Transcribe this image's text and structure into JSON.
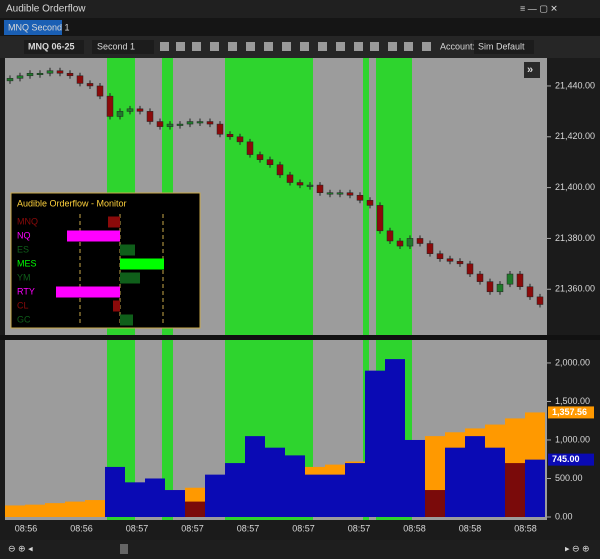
{
  "window": {
    "title": "Audible Orderflow",
    "tab": "MNQ Second 1"
  },
  "toolbar": {
    "instrument": "MNQ 06-25",
    "interval": "Second 1",
    "account_label": "Account:",
    "account": "Sim Default"
  },
  "monitor": {
    "title": "Audible Orderflow - Monitor",
    "xlim": [
      -70,
      70
    ],
    "rows": [
      {
        "symbol": "MNQ",
        "color": "#8b0a0a",
        "value": -12
      },
      {
        "symbol": "NQ",
        "color": "#ff00ff",
        "value": -53
      },
      {
        "symbol": "ES",
        "color": "#0f5f1a",
        "value": 15
      },
      {
        "symbol": "MES",
        "color": "#00ff00",
        "value": 44
      },
      {
        "symbol": "YM",
        "color": "#0f5f1a",
        "value": 20
      },
      {
        "symbol": "RTY",
        "color": "#ff00ff",
        "value": -64
      },
      {
        "symbol": "CL",
        "color": "#8b0a0a",
        "value": -7
      },
      {
        "symbol": "GC",
        "color": "#0f5f1a",
        "value": 13
      }
    ]
  },
  "time_labels": [
    "08:56",
    "08:56",
    "08:57",
    "08:57",
    "08:57",
    "08:57",
    "08:57",
    "08:58",
    "08:58",
    "08:58"
  ],
  "chart_data": [
    {
      "type": "candlestick",
      "up_color": "#1e7a2a",
      "down_color": "#8b0a0a",
      "ylim": [
        21342,
        21451
      ],
      "yticks": [
        {
          "value": 21440,
          "label": "21,440.00"
        },
        {
          "value": 21420,
          "label": "21,420.00"
        },
        {
          "value": 21400,
          "label": "21,400.00"
        },
        {
          "value": 21380,
          "label": "21,380.00"
        },
        {
          "value": 21360,
          "label": "21,360.00"
        }
      ],
      "candles": [
        [
          21442,
          21443
        ],
        [
          21443,
          21444
        ],
        [
          21444,
          21445
        ],
        [
          21445,
          21445
        ],
        [
          21445,
          21446
        ],
        [
          21446,
          21445
        ],
        [
          21445,
          21444
        ],
        [
          21444,
          21441
        ],
        [
          21441,
          21440
        ],
        [
          21440,
          21436
        ],
        [
          21436,
          21428
        ],
        [
          21428,
          21430
        ],
        [
          21430,
          21431
        ],
        [
          21431,
          21430
        ],
        [
          21430,
          21426
        ],
        [
          21426,
          21424
        ],
        [
          21424,
          21425
        ],
        [
          21425,
          21425
        ],
        [
          21425,
          21426
        ],
        [
          21426,
          21426
        ],
        [
          21426,
          21425
        ],
        [
          21425,
          21421
        ],
        [
          21421,
          21420
        ],
        [
          21420,
          21418
        ],
        [
          21418,
          21413
        ],
        [
          21413,
          21411
        ],
        [
          21411,
          21409
        ],
        [
          21409,
          21405
        ],
        [
          21405,
          21402
        ],
        [
          21402,
          21401
        ],
        [
          21401,
          21401
        ],
        [
          21401,
          21398
        ],
        [
          21398,
          21398
        ],
        [
          21398,
          21398
        ],
        [
          21398,
          21397
        ],
        [
          21397,
          21395
        ],
        [
          21395,
          21393
        ],
        [
          21393,
          21383
        ],
        [
          21383,
          21379
        ],
        [
          21379,
          21377
        ],
        [
          21377,
          21380
        ],
        [
          21380,
          21378
        ],
        [
          21378,
          21374
        ],
        [
          21374,
          21372
        ],
        [
          21372,
          21371
        ],
        [
          21371,
          21370
        ],
        [
          21370,
          21366
        ],
        [
          21366,
          21363
        ],
        [
          21363,
          21359
        ],
        [
          21359,
          21362
        ],
        [
          21362,
          21366
        ],
        [
          21366,
          21361
        ],
        [
          21361,
          21357
        ],
        [
          21357,
          21354
        ]
      ]
    },
    {
      "type": "bar",
      "ylim": [
        -39,
        2298
      ],
      "yticks": [
        {
          "value": 2000,
          "label": "2,000.00"
        },
        {
          "value": 1500,
          "label": "1,500.00"
        },
        {
          "value": 1000,
          "label": "1,000.00"
        },
        {
          "value": 500,
          "label": "500.00"
        },
        {
          "value": 0,
          "label": "0.00"
        }
      ],
      "series": [
        {
          "name": "cumulative",
          "color": "#ff9900",
          "values": [
            150,
            160,
            180,
            200,
            220,
            280,
            300,
            330,
            350,
            380,
            420,
            480,
            520,
            560,
            600,
            650,
            680,
            720,
            780,
            850,
            980,
            1050,
            1100,
            1150,
            1200,
            1280,
            1357.56
          ],
          "last_label": "1,357.56"
        },
        {
          "name": "volume",
          "color": "#0a0ab4",
          "values": [
            0,
            0,
            0,
            0,
            0,
            650,
            450,
            500,
            350,
            200,
            550,
            700,
            1050,
            900,
            800,
            550,
            550,
            700,
            1900,
            2050,
            1000,
            350,
            900,
            1050,
            900,
            700,
            745
          ],
          "colors": [
            "#0a0ab4",
            "#0a0ab4",
            "#0a0ab4",
            "#0a0ab4",
            "#0a0ab4",
            "#0a0ab4",
            "#0a0ab4",
            "#0a0ab4",
            "#0a0ab4",
            "#7a0a0a",
            "#0a0ab4",
            "#0a0ab4",
            "#0a0ab4",
            "#0a0ab4",
            "#0a0ab4",
            "#0a0ab4",
            "#0a0ab4",
            "#0a0ab4",
            "#0a0ab4",
            "#0a0ab4",
            "#0a0ab4",
            "#7a0a0a",
            "#0a0ab4",
            "#0a0ab4",
            "#0a0ab4",
            "#7a0a0a",
            "#0a0ab4"
          ],
          "last_label": "745.00"
        }
      ]
    }
  ]
}
